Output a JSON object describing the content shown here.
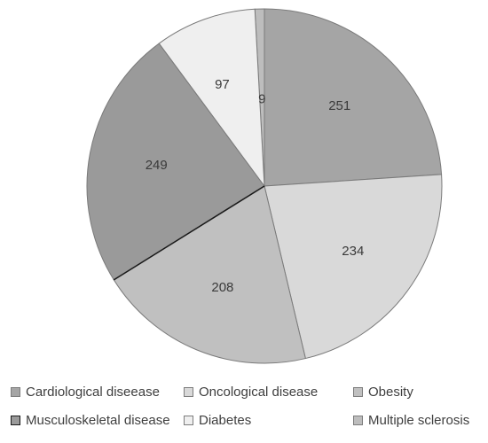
{
  "chart_data": {
    "type": "pie",
    "title": "",
    "legend_position": "bottom",
    "slices": [
      {
        "label": "Multiple sclerosis",
        "value": 9,
        "color": "#bdbdbd"
      },
      {
        "label": "Cardiological diseease",
        "value": 251,
        "color": "#a5a5a5"
      },
      {
        "label": "Oncological disease",
        "value": 234,
        "color": "#d9d9d9"
      },
      {
        "label": "Obesity",
        "value": 208,
        "color": "#c0c0c0"
      },
      {
        "label": "Musculoskeletal disease",
        "value": 249,
        "color": "#9a9a9a"
      },
      {
        "label": "Diabetes",
        "value": 97,
        "color": "#efefef"
      }
    ]
  },
  "legend": {
    "items": [
      {
        "label": "Cardiological diseease",
        "color": "#a5a5a5"
      },
      {
        "label": "Oncological disease",
        "color": "#d9d9d9"
      },
      {
        "label": "Obesity",
        "color": "#c0c0c0"
      },
      {
        "label": "Musculoskeletal disease",
        "color": "#9a9a9a"
      },
      {
        "label": "Diabetes",
        "color": "#efefef"
      },
      {
        "label": "Multiple sclerosis",
        "color": "#bdbdbd"
      }
    ]
  }
}
